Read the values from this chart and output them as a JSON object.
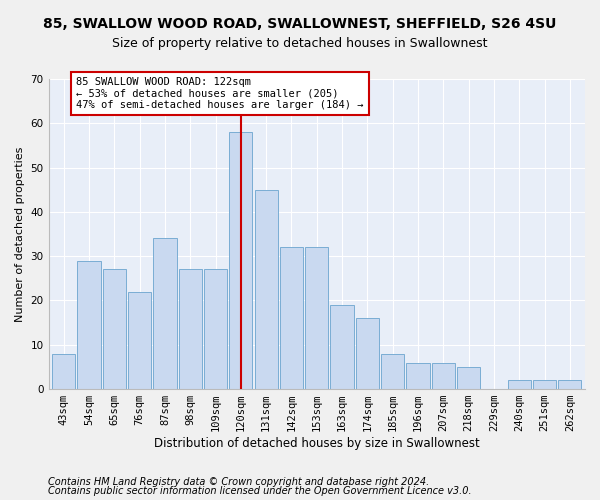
{
  "title": "85, SWALLOW WOOD ROAD, SWALLOWNEST, SHEFFIELD, S26 4SU",
  "subtitle": "Size of property relative to detached houses in Swallownest",
  "xlabel": "Distribution of detached houses by size in Swallownest",
  "ylabel": "Number of detached properties",
  "categories": [
    "43sqm",
    "54sqm",
    "65sqm",
    "76sqm",
    "87sqm",
    "98sqm",
    "109sqm",
    "120sqm",
    "131sqm",
    "142sqm",
    "153sqm",
    "163sqm",
    "174sqm",
    "185sqm",
    "196sqm",
    "207sqm",
    "218sqm",
    "229sqm",
    "240sqm",
    "251sqm",
    "262sqm"
  ],
  "values": [
    8,
    29,
    27,
    22,
    34,
    27,
    27,
    58,
    45,
    32,
    32,
    19,
    16,
    8,
    6,
    6,
    5,
    0,
    2,
    2,
    2
  ],
  "bar_color": "#c9d9f0",
  "bar_edge_color": "#7aadd4",
  "red_line_index": 7,
  "annotation_text": "85 SWALLOW WOOD ROAD: 122sqm\n← 53% of detached houses are smaller (205)\n47% of semi-detached houses are larger (184) →",
  "annotation_box_color": "#ffffff",
  "annotation_box_edge": "#cc0000",
  "ylim": [
    0,
    70
  ],
  "yticks": [
    0,
    10,
    20,
    30,
    40,
    50,
    60,
    70
  ],
  "footer_line1": "Contains HM Land Registry data © Crown copyright and database right 2024.",
  "footer_line2": "Contains public sector information licensed under the Open Government Licence v3.0.",
  "fig_bg_color": "#f0f0f0",
  "plot_bg_color": "#e8eef8",
  "grid_color": "#ffffff",
  "title_fontsize": 10,
  "subtitle_fontsize": 9,
  "xlabel_fontsize": 8.5,
  "ylabel_fontsize": 8,
  "tick_fontsize": 7.5,
  "annotation_fontsize": 7.5,
  "footer_fontsize": 7
}
